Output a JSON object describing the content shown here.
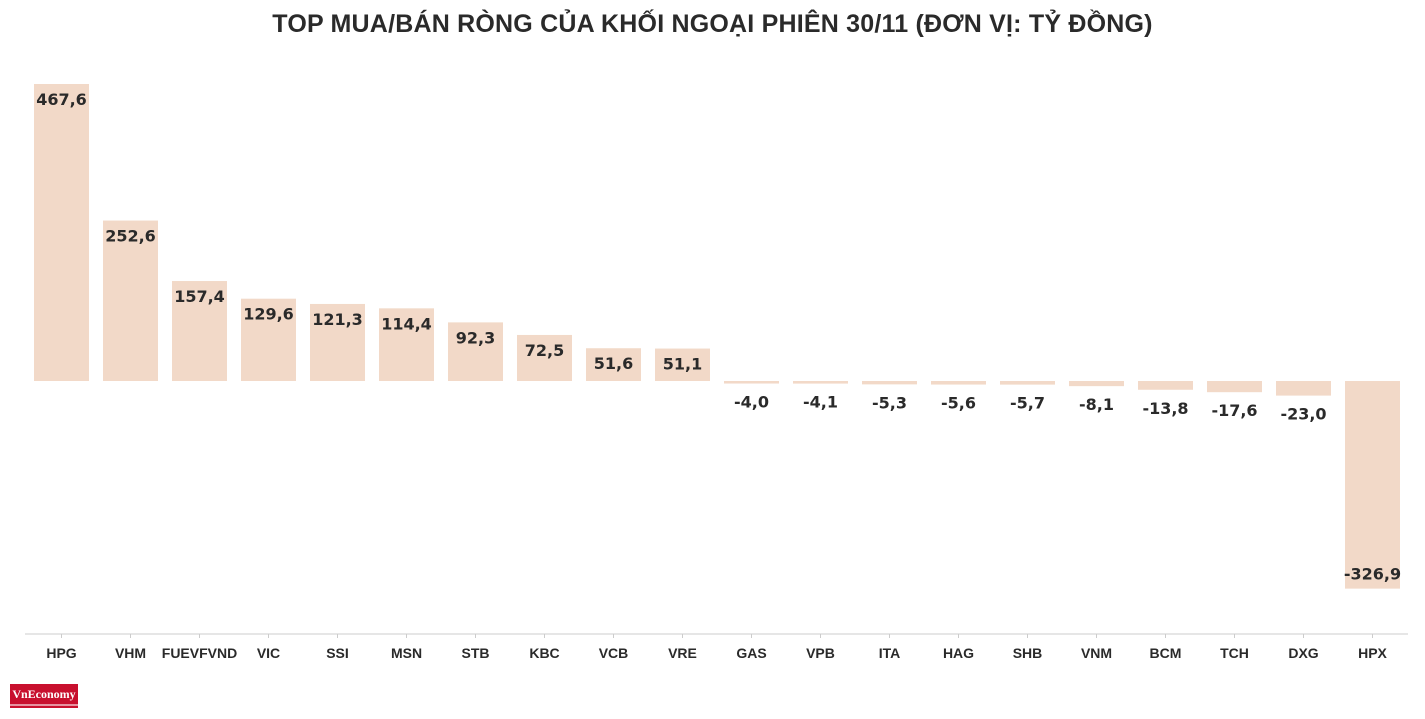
{
  "title": "TOP MUA/BÁN RÒNG CỦA KHỐI NGOẠI PHIÊN 30/11 (ĐƠN VỊ: TỶ ĐỒNG)",
  "logo_text": "VnEconomy",
  "colors": {
    "bar": "#f2d9c8",
    "label": "#2a2a2a",
    "axis": "#cccccc",
    "logo": "#c8102e"
  },
  "chart_data": {
    "type": "bar",
    "title": "TOP MUA/BÁN RÒNG CỦA KHỐI NGOẠI PHIÊN 30/11 (ĐƠN VỊ: TỶ ĐỒNG)",
    "categories": [
      "HPG",
      "VHM",
      "FUEVFVND",
      "VIC",
      "SSI",
      "MSN",
      "STB",
      "KBC",
      "VCB",
      "VRE",
      "GAS",
      "VPB",
      "ITA",
      "HAG",
      "SHB",
      "VNM",
      "BCM",
      "TCH",
      "DXG",
      "HPX"
    ],
    "values": [
      467.6,
      252.6,
      157.4,
      129.6,
      121.3,
      114.4,
      92.3,
      72.5,
      51.6,
      51.1,
      -4.0,
      -4.1,
      -5.3,
      -5.6,
      -5.7,
      -8.1,
      -13.8,
      -17.6,
      -23.0,
      -326.9
    ],
    "value_labels": [
      "467,6",
      "252,6",
      "157,4",
      "129,6",
      "121,3",
      "114,4",
      "92,3",
      "72,5",
      "51,6",
      "51,1",
      "-4,0",
      "-4,1",
      "-5,3",
      "-5,6",
      "-5,7",
      "-8,1",
      "-13,8",
      "-17,6",
      "-23,0",
      "-326,9"
    ],
    "xlabel": "",
    "ylabel": "",
    "grid": false,
    "legend": "none"
  }
}
